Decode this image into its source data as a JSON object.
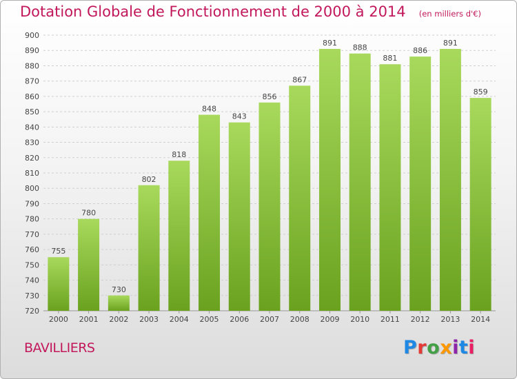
{
  "title": "Dotation Globale de Fonctionnement de 2000 à 2014",
  "subtitle": "(en milliers d'€)",
  "place": "BAVILLIERS",
  "logo": {
    "text": "Proxiti",
    "colors": [
      "#1e88e5",
      "#e53935",
      "#43a047",
      "#ff9800",
      "#8e24aa",
      "#1e88e5",
      "#e91e63"
    ]
  },
  "colors": {
    "accent": "#c2185b",
    "bar_light": "#a8d95c",
    "bar_dark": "#6aa21f",
    "grid": "#cfcfcf"
  },
  "chart_data": {
    "type": "bar",
    "categories": [
      "2000",
      "2001",
      "2002",
      "2003",
      "2004",
      "2005",
      "2006",
      "2007",
      "2008",
      "2009",
      "2010",
      "2011",
      "2012",
      "2013",
      "2014"
    ],
    "values": [
      755,
      780,
      730,
      802,
      818,
      848,
      843,
      856,
      867,
      891,
      888,
      881,
      886,
      891,
      859
    ],
    "title": "Dotation Globale de Fonctionnement de 2000 à 2014",
    "subtitle": "(en milliers d'€)",
    "ylim": [
      720,
      900
    ],
    "yticks": [
      720,
      730,
      740,
      750,
      760,
      770,
      780,
      790,
      800,
      810,
      820,
      830,
      840,
      850,
      860,
      870,
      880,
      890,
      900
    ],
    "grid": true,
    "data_labels": true
  }
}
